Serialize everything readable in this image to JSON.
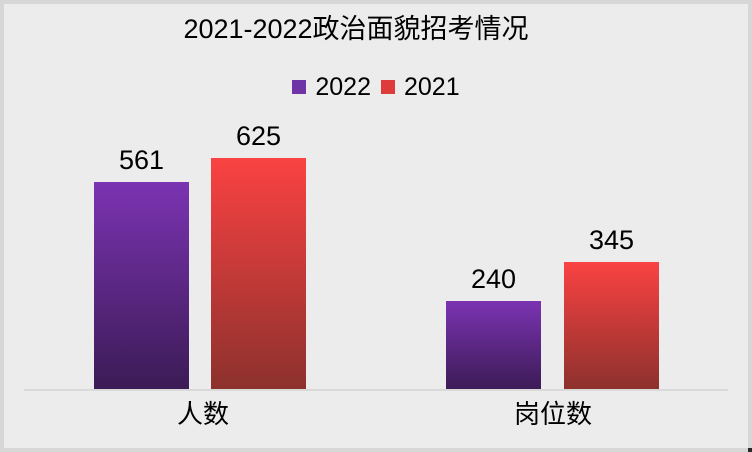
{
  "chart": {
    "background": "#ECECEC",
    "border_color": "#D7D7D7",
    "axis_line_color": "#D9D9D9",
    "text_color": "#000000"
  },
  "chart_data": {
    "type": "bar",
    "title": "2021-2022政治面貌招考情况",
    "categories": [
      "人数",
      "岗位数"
    ],
    "series": [
      {
        "name": "2022",
        "values": [
          561,
          240
        ],
        "color_top": "#7B33B2",
        "color_bottom": "#3B1B55",
        "legend_color": "#6F35A6"
      },
      {
        "name": "2021",
        "values": [
          625,
          345
        ],
        "color_top": "#FA4242",
        "color_bottom": "#8C312D",
        "legend_color": "#DE3B3B"
      }
    ],
    "xlabel": "",
    "ylabel": "",
    "ylim": [
      0,
      650
    ],
    "grid": false,
    "legend_position": "top",
    "value_labels_shown": true,
    "y_axis_shown": false
  }
}
